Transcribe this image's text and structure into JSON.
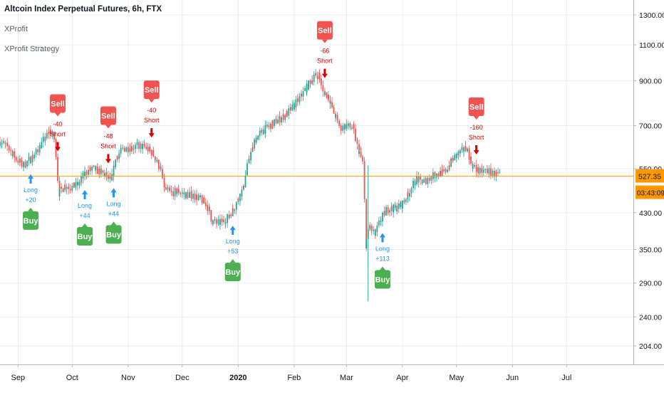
{
  "header": {
    "title": "Altcoin Index Perpetual Futures, 6h, FTX",
    "indicators": [
      "XProfit",
      "XProfit Strategy"
    ]
  },
  "chart_data": {
    "type": "candlestick",
    "title": "Altcoin Index Perpetual Futures, 6h, FTX",
    "y_scale": "log",
    "ylim": [
      193,
      1380
    ],
    "y_ticks": [
      1300,
      1100,
      900,
      700,
      550,
      430,
      350,
      290,
      240,
      204
    ],
    "y_tick_labels": [
      "1300.00",
      "1100.00",
      "900.00",
      "700.00",
      "550.00",
      "430.00",
      "350.00",
      "290.00",
      "240.00",
      "204.00"
    ],
    "x_tick_labels": [
      "Sep",
      "Oct",
      "Nov",
      "Dec",
      "2020",
      "Feb",
      "Mar",
      "Apr",
      "May",
      "Jun",
      "Jul"
    ],
    "x_tick_dates": [
      "2019-09-01",
      "2019-10-01",
      "2019-11-01",
      "2019-12-01",
      "2020-01-01",
      "2020-02-01",
      "2020-03-01",
      "2020-04-01",
      "2020-05-01",
      "2020-06-01",
      "2020-07-01"
    ],
    "x_range": [
      "2019-08-22",
      "2020-08-07"
    ],
    "price_path": [
      {
        "date": "2019-08-22",
        "price": 640
      },
      {
        "date": "2019-08-27",
        "price": 620
      },
      {
        "date": "2019-08-31",
        "price": 585
      },
      {
        "date": "2019-09-04",
        "price": 560
      },
      {
        "date": "2019-09-08",
        "price": 580
      },
      {
        "date": "2019-09-12",
        "price": 605
      },
      {
        "date": "2019-09-16",
        "price": 650
      },
      {
        "date": "2019-09-19",
        "price": 680
      },
      {
        "date": "2019-09-22",
        "price": 640
      },
      {
        "date": "2019-09-24",
        "price": 480
      },
      {
        "date": "2019-09-27",
        "price": 500
      },
      {
        "date": "2019-10-01",
        "price": 495
      },
      {
        "date": "2019-10-05",
        "price": 505
      },
      {
        "date": "2019-10-09",
        "price": 540
      },
      {
        "date": "2019-10-13",
        "price": 550
      },
      {
        "date": "2019-10-17",
        "price": 540
      },
      {
        "date": "2019-10-20",
        "price": 530
      },
      {
        "date": "2019-10-23",
        "price": 510
      },
      {
        "date": "2019-10-26",
        "price": 590
      },
      {
        "date": "2019-10-30",
        "price": 615
      },
      {
        "date": "2019-11-03",
        "price": 620
      },
      {
        "date": "2019-11-07",
        "price": 625
      },
      {
        "date": "2019-11-11",
        "price": 620
      },
      {
        "date": "2019-11-15",
        "price": 600
      },
      {
        "date": "2019-11-19",
        "price": 550
      },
      {
        "date": "2019-11-22",
        "price": 490
      },
      {
        "date": "2019-11-25",
        "price": 480
      },
      {
        "date": "2019-11-29",
        "price": 485
      },
      {
        "date": "2019-12-03",
        "price": 475
      },
      {
        "date": "2019-12-07",
        "price": 475
      },
      {
        "date": "2019-12-11",
        "price": 465
      },
      {
        "date": "2019-12-15",
        "price": 450
      },
      {
        "date": "2019-12-18",
        "price": 410
      },
      {
        "date": "2019-12-21",
        "price": 405
      },
      {
        "date": "2019-12-24",
        "price": 410
      },
      {
        "date": "2019-12-27",
        "price": 420
      },
      {
        "date": "2019-12-31",
        "price": 450
      },
      {
        "date": "2020-01-04",
        "price": 490
      },
      {
        "date": "2020-01-07",
        "price": 570
      },
      {
        "date": "2020-01-11",
        "price": 650
      },
      {
        "date": "2020-01-15",
        "price": 680
      },
      {
        "date": "2020-01-19",
        "price": 700
      },
      {
        "date": "2020-01-23",
        "price": 720
      },
      {
        "date": "2020-01-27",
        "price": 740
      },
      {
        "date": "2020-01-31",
        "price": 770
      },
      {
        "date": "2020-02-04",
        "price": 810
      },
      {
        "date": "2020-02-08",
        "price": 860
      },
      {
        "date": "2020-02-12",
        "price": 920
      },
      {
        "date": "2020-02-15",
        "price": 930
      },
      {
        "date": "2020-02-17",
        "price": 850
      },
      {
        "date": "2020-02-20",
        "price": 830
      },
      {
        "date": "2020-02-24",
        "price": 740
      },
      {
        "date": "2020-02-27",
        "price": 690
      },
      {
        "date": "2020-03-01",
        "price": 700
      },
      {
        "date": "2020-03-05",
        "price": 690
      },
      {
        "date": "2020-03-08",
        "price": 610
      },
      {
        "date": "2020-03-11",
        "price": 560
      },
      {
        "date": "2020-03-12",
        "price": 360
      },
      {
        "date": "2020-03-14",
        "price": 400
      },
      {
        "date": "2020-03-17",
        "price": 380
      },
      {
        "date": "2020-03-20",
        "price": 410
      },
      {
        "date": "2020-03-24",
        "price": 440
      },
      {
        "date": "2020-03-28",
        "price": 440
      },
      {
        "date": "2020-04-01",
        "price": 450
      },
      {
        "date": "2020-04-05",
        "price": 480
      },
      {
        "date": "2020-04-09",
        "price": 520
      },
      {
        "date": "2020-04-13",
        "price": 510
      },
      {
        "date": "2020-04-17",
        "price": 525
      },
      {
        "date": "2020-04-21",
        "price": 535
      },
      {
        "date": "2020-04-25",
        "price": 540
      },
      {
        "date": "2020-04-29",
        "price": 580
      },
      {
        "date": "2020-05-03",
        "price": 600
      },
      {
        "date": "2020-05-07",
        "price": 620
      },
      {
        "date": "2020-05-10",
        "price": 560
      },
      {
        "date": "2020-05-14",
        "price": 540
      },
      {
        "date": "2020-05-18",
        "price": 545
      },
      {
        "date": "2020-05-22",
        "price": 535
      },
      {
        "date": "2020-05-25",
        "price": 527
      }
    ],
    "last_price": 527.35,
    "last_price_label": "527.35",
    "countdown": "03:43:09",
    "signals": [
      {
        "type": "sell",
        "label": "Sell",
        "date": "2019-09-23",
        "pnl": "-40",
        "short_label": "Short"
      },
      {
        "type": "buy",
        "label": "Buy",
        "date": "2019-09-08",
        "long_label": "Long",
        "pnl": "+20"
      },
      {
        "type": "buy",
        "label": "Buy",
        "date": "2019-10-08",
        "long_label": "Long",
        "pnl": "+44"
      },
      {
        "type": "sell",
        "label": "Sell",
        "date": "2019-10-21",
        "pnl": "-48",
        "short_label": "Short"
      },
      {
        "type": "buy",
        "label": "Buy",
        "date": "2019-10-24",
        "long_label": "Long",
        "pnl": "+44"
      },
      {
        "type": "sell",
        "label": "Sell",
        "date": "2019-11-14",
        "pnl": "-40",
        "short_label": "Short"
      },
      {
        "type": "buy",
        "label": "Buy",
        "date": "2019-12-29",
        "long_label": "Long",
        "pnl": "+53"
      },
      {
        "type": "sell",
        "label": "Sell",
        "date": "2020-02-18",
        "pnl": "-66",
        "short_label": "Short"
      },
      {
        "type": "buy",
        "label": "Buy",
        "date": "2020-03-21",
        "long_label": "Long",
        "pnl": "+113"
      },
      {
        "type": "sell",
        "label": "Sell",
        "date": "2020-05-12",
        "pnl": "-160",
        "short_label": "Short"
      }
    ],
    "colors": {
      "up": "#26a69a",
      "down": "#ef5350",
      "sell": "#f05350",
      "buy": "#4caf50",
      "long_arrow": "#2196f3",
      "short_arrow": "#d50000",
      "price_line": "#ff9800",
      "grid": "#e9edf2"
    },
    "grid": true
  }
}
